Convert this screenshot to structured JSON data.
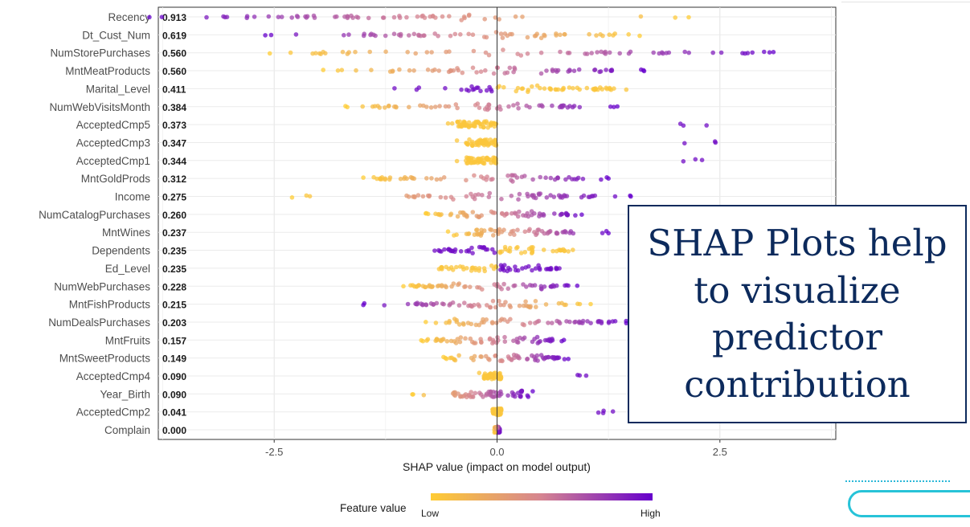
{
  "chart_data": {
    "type": "scatter",
    "subtype": "shap-summary-beeswarm",
    "xlabel": "SHAP value (impact on model output)",
    "xlim": [
      -3.8,
      3.8
    ],
    "xticks": [
      -2.5,
      0.0,
      2.5
    ],
    "tick_labels": [
      "-2.5",
      "0.0",
      "2.5"
    ],
    "grid": true,
    "legend": {
      "title": "Feature value",
      "low_label": "Low",
      "high_label": "High",
      "low_color": "#FFCC33",
      "mid_color": "#D58491",
      "high_color": "#6600CC",
      "placement": "bottom"
    },
    "features": [
      {
        "name": "Recency",
        "importance": "0.913",
        "min": -3.9,
        "max": 2.15,
        "left_end": "high",
        "dense": [
          -3.1,
          0.3
        ]
      },
      {
        "name": "Dt_Cust_Num",
        "importance": "0.619",
        "min": -2.6,
        "max": 1.6,
        "left_end": "high",
        "dense": [
          -1.8,
          1.4
        ]
      },
      {
        "name": "NumStorePurchases",
        "importance": "0.560",
        "min": -2.55,
        "max": 3.1,
        "left_end": "low",
        "dense": [
          -2.2,
          2.9
        ]
      },
      {
        "name": "MntMeatProducts",
        "importance": "0.560",
        "min": -1.95,
        "max": 1.65,
        "left_end": "low",
        "dense": [
          -1.6,
          1.4
        ]
      },
      {
        "name": "Marital_Level",
        "importance": "0.411",
        "min": -1.15,
        "max": 1.45,
        "left_end": "high",
        "dense": [
          -0.6,
          1.3
        ],
        "split": true
      },
      {
        "name": "NumWebVisitsMonth",
        "importance": "0.384",
        "min": -1.7,
        "max": 1.35,
        "left_end": "low",
        "dense": [
          -1.4,
          1.0
        ]
      },
      {
        "name": "AcceptedCmp5",
        "importance": "0.373",
        "min": -0.55,
        "max": 2.35,
        "left_end": "low",
        "dense": [
          -0.45,
          0.0
        ],
        "gap": [
          0.1,
          0.6
        ]
      },
      {
        "name": "AcceptedCmp3",
        "importance": "0.347",
        "min": -0.45,
        "max": 2.45,
        "left_end": "low",
        "dense": [
          -0.35,
          0.0
        ],
        "gap": [
          0.1,
          0.5
        ]
      },
      {
        "name": "AcceptedCmp1",
        "importance": "0.344",
        "min": -0.45,
        "max": 2.3,
        "left_end": "low",
        "dense": [
          -0.35,
          0.0
        ],
        "gap": [
          0.1,
          0.5
        ]
      },
      {
        "name": "MntGoldProds",
        "importance": "0.312",
        "min": -1.5,
        "max": 1.25,
        "left_end": "low",
        "dense": [
          -1.4,
          1.1
        ]
      },
      {
        "name": "Income",
        "importance": "0.275",
        "min": -2.3,
        "max": 1.5,
        "left_end": "low",
        "dense": [
          -1.2,
          1.1
        ]
      },
      {
        "name": "NumCatalogPurchases",
        "importance": "0.260",
        "min": -0.8,
        "max": 0.95,
        "left_end": "low",
        "dense": [
          -0.8,
          0.8
        ]
      },
      {
        "name": "MntWines",
        "importance": "0.237",
        "min": -0.55,
        "max": 1.25,
        "left_end": "low",
        "dense": [
          -0.4,
          0.9
        ]
      },
      {
        "name": "Dependents",
        "importance": "0.235",
        "min": -0.7,
        "max": 0.85,
        "left_end": "high",
        "dense": [
          -0.7,
          0.8
        ],
        "split": true
      },
      {
        "name": "Ed_Level",
        "importance": "0.235",
        "min": -0.65,
        "max": 0.7,
        "left_end": "low",
        "dense": [
          -0.65,
          0.7
        ],
        "split": true
      },
      {
        "name": "NumWebPurchases",
        "importance": "0.228",
        "min": -1.05,
        "max": 0.9,
        "left_end": "low",
        "dense": [
          -0.95,
          0.8
        ]
      },
      {
        "name": "MntFishProducts",
        "importance": "0.215",
        "min": -1.5,
        "max": 1.05,
        "left_end": "high",
        "dense": [
          -1.0,
          0.8
        ]
      },
      {
        "name": "NumDealsPurchases",
        "importance": "0.203",
        "min": -0.8,
        "max": 1.45,
        "left_end": "low",
        "dense": [
          -0.6,
          1.35
        ]
      },
      {
        "name": "MntFruits",
        "importance": "0.157",
        "min": -0.85,
        "max": 0.75,
        "left_end": "low",
        "dense": [
          -0.8,
          0.65
        ]
      },
      {
        "name": "MntSweetProducts",
        "importance": "0.149",
        "min": -0.6,
        "max": 0.8,
        "left_end": "low",
        "dense": [
          -0.6,
          0.7
        ]
      },
      {
        "name": "AcceptedCmp4",
        "importance": "0.090",
        "min": -0.2,
        "max": 1.0,
        "left_end": "low",
        "dense": [
          -0.15,
          0.05
        ],
        "gap": [
          0.05,
          0.1
        ]
      },
      {
        "name": "Year_Birth",
        "importance": "0.090",
        "min": -0.95,
        "max": 0.4,
        "left_end": "low",
        "dense": [
          -0.5,
          0.3
        ]
      },
      {
        "name": "AcceptedCmp2",
        "importance": "0.041",
        "min": -0.05,
        "max": 1.3,
        "left_end": "low",
        "dense": [
          -0.05,
          0.05
        ],
        "gap": [
          0.05,
          0.85
        ]
      },
      {
        "name": "Complain",
        "importance": "0.000",
        "min": -0.03,
        "max": 0.03,
        "left_end": "low",
        "dense": [
          -0.03,
          0.03
        ]
      }
    ]
  },
  "callout": {
    "text": "SHAP Plots help to visualize predictor contribution"
  }
}
